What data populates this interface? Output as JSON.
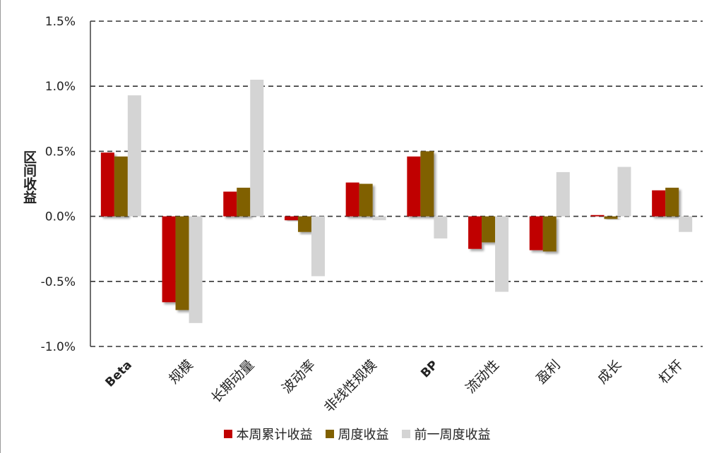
{
  "chart_data": {
    "type": "bar",
    "ylabel": "区间收益",
    "ylim": [
      -1.0,
      1.5
    ],
    "yticks": [
      {
        "value": 1.5,
        "label": "1.5%"
      },
      {
        "value": 1.0,
        "label": "1.0%"
      },
      {
        "value": 0.5,
        "label": "0.5%"
      },
      {
        "value": 0.0,
        "label": "0.0%"
      },
      {
        "value": -0.5,
        "label": "-0.5%"
      },
      {
        "value": -1.0,
        "label": "-1.0%"
      }
    ],
    "grid": true,
    "legend_position": "bottom",
    "categories": [
      "Beta",
      "规模",
      "长期动量",
      "波动率",
      "非线性规模",
      "BP",
      "流动性",
      "盈利",
      "成长",
      "杠杆"
    ],
    "series": [
      {
        "name": "本周累计收益",
        "color": "#c00000",
        "values": [
          0.49,
          -0.66,
          0.19,
          -0.03,
          0.26,
          0.46,
          -0.25,
          -0.26,
          0.01,
          0.2
        ]
      },
      {
        "name": "周度收益",
        "color": "#806000",
        "values": [
          0.46,
          -0.72,
          0.22,
          -0.12,
          0.25,
          0.5,
          -0.2,
          -0.27,
          -0.02,
          0.22
        ]
      },
      {
        "name": "前一周度收益",
        "color": "#d4d4d4",
        "values": [
          0.93,
          -0.82,
          1.05,
          -0.46,
          -0.03,
          -0.17,
          -0.58,
          0.34,
          0.38,
          -0.12
        ]
      }
    ]
  }
}
